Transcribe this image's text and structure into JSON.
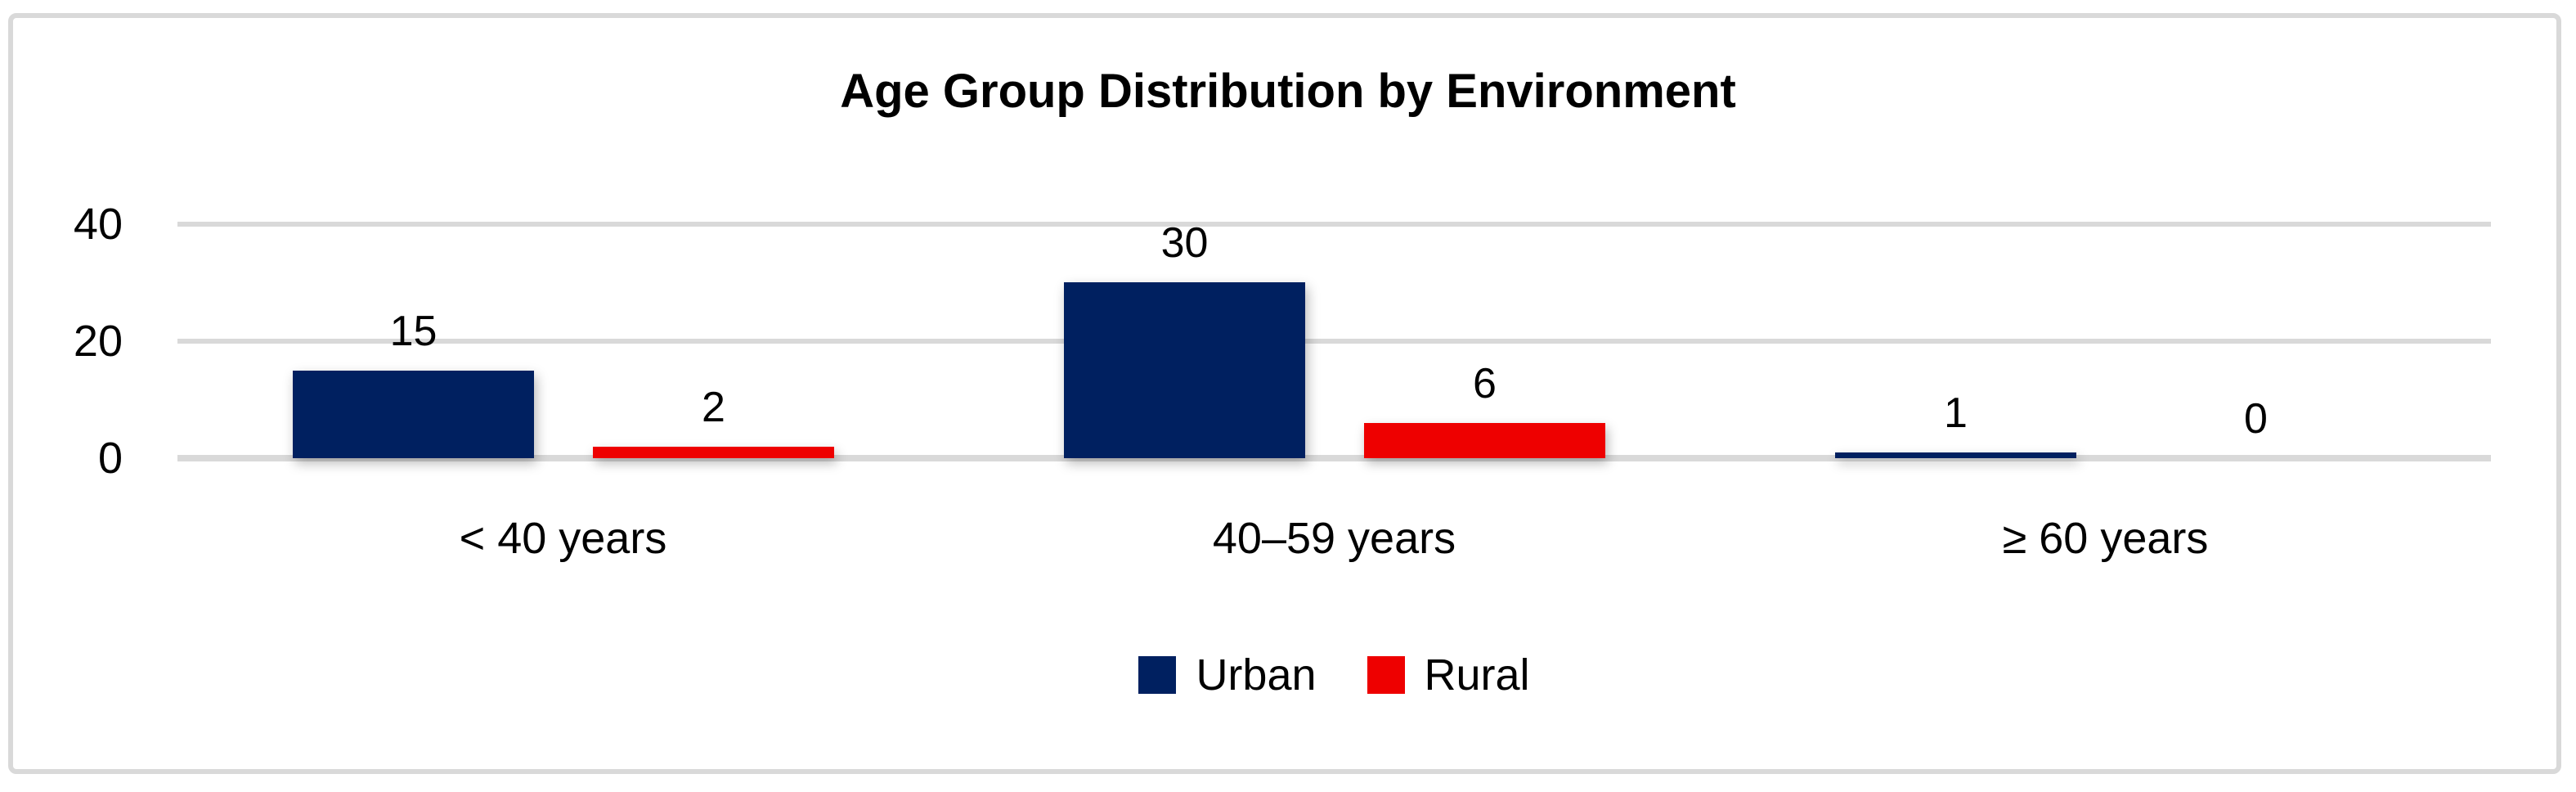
{
  "chart_data": {
    "type": "bar",
    "title": "Age Group Distribution by Environment",
    "categories": [
      "< 40 years",
      "40–59 years",
      "≥ 60 years"
    ],
    "series": [
      {
        "name": "Urban",
        "color": "#002060",
        "values": [
          15,
          30,
          1
        ]
      },
      {
        "name": "Rural",
        "color": "#EE0000",
        "values": [
          2,
          6,
          0
        ]
      }
    ],
    "data_labels": [
      [
        "15",
        "30",
        "1"
      ],
      [
        "2",
        "6",
        "0"
      ]
    ],
    "xlabel": "",
    "ylabel": "",
    "ylim": [
      0,
      40
    ],
    "yticks": [
      "0",
      "20",
      "40"
    ],
    "grid": true,
    "legend_position": "bottom-center"
  },
  "style": {
    "background": "#FFFFFF",
    "frame_color": "#D9D9D9",
    "gridline_color": "#D9D9D9",
    "text_color": "#000000"
  }
}
